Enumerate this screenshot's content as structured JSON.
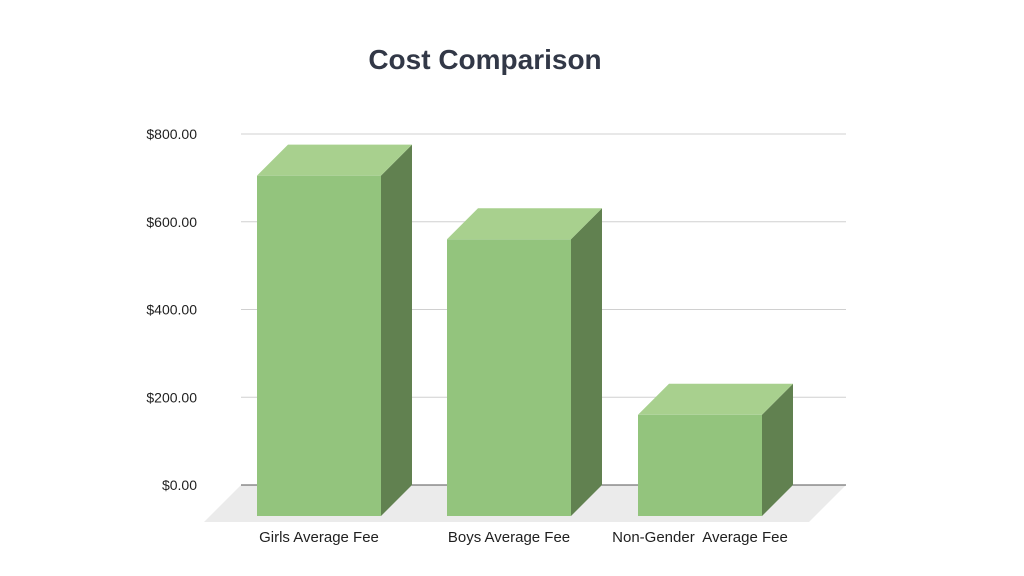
{
  "chart_data": {
    "type": "bar",
    "title": "Cost Comparison",
    "categories": [
      "Girls Average Fee",
      "Boys Average Fee",
      "Non-Gender  Average Fee"
    ],
    "values": [
      705,
      560,
      160
    ],
    "ylim": [
      0,
      800
    ],
    "yticks": [
      "$0.00",
      "$200.00",
      "$400.00",
      "$600.00",
      "$800.00"
    ],
    "ytick_values": [
      0,
      200,
      400,
      600,
      800
    ],
    "grid": true,
    "legend": "none",
    "colors": {
      "front": "#93c47d",
      "top": "#a8d08e",
      "side": "#618150",
      "floor": "#ebebeb",
      "grid": "#d0d0d0",
      "baseline": "#555555"
    }
  }
}
